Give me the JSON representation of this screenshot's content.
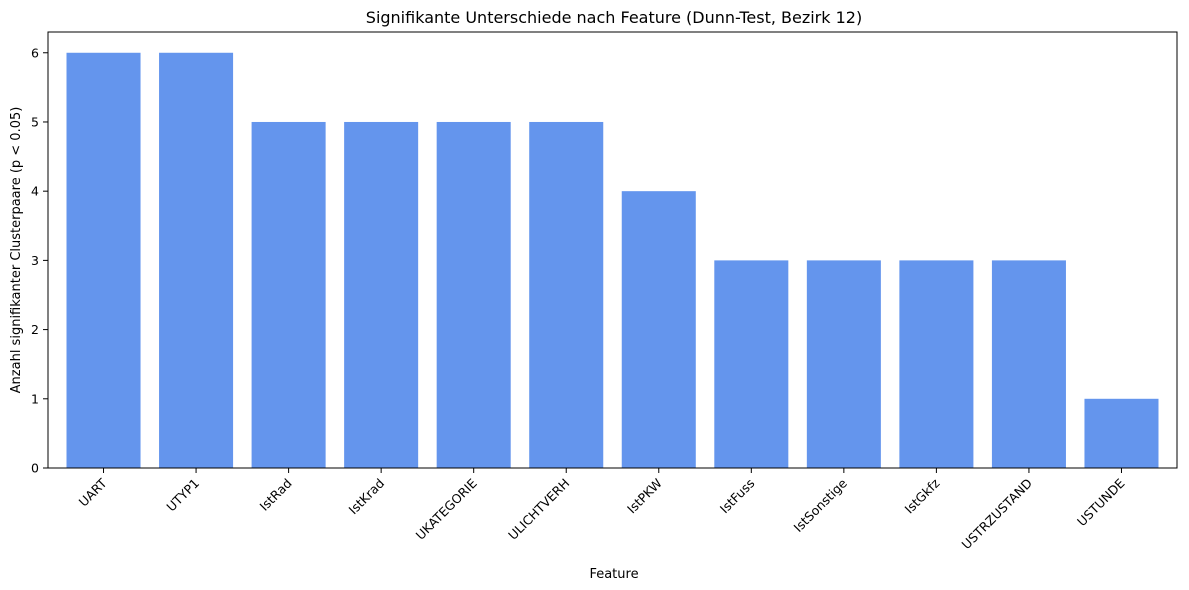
{
  "chart_data": {
    "type": "bar",
    "title": "Signifikante Unterschiede nach Feature (Dunn-Test, Bezirk 12)",
    "xlabel": "Feature",
    "ylabel": "Anzahl signifikanter Clusterpaare (p < 0.05)",
    "categories": [
      "UART",
      "UTYP1",
      "IstRad",
      "IstKrad",
      "UKATEGORIE",
      "ULICHTVERH",
      "IstPKW",
      "IstFuss",
      "IstSonstige",
      "IstGkfz",
      "USTRZUSTAND",
      "USTUNDE"
    ],
    "values": [
      6,
      6,
      5,
      5,
      5,
      5,
      4,
      3,
      3,
      3,
      3,
      1
    ],
    "ylim": [
      0,
      6.3
    ],
    "yticks": [
      0,
      1,
      2,
      3,
      4,
      5,
      6
    ],
    "grid": false,
    "bar_color": "#6495ED"
  }
}
